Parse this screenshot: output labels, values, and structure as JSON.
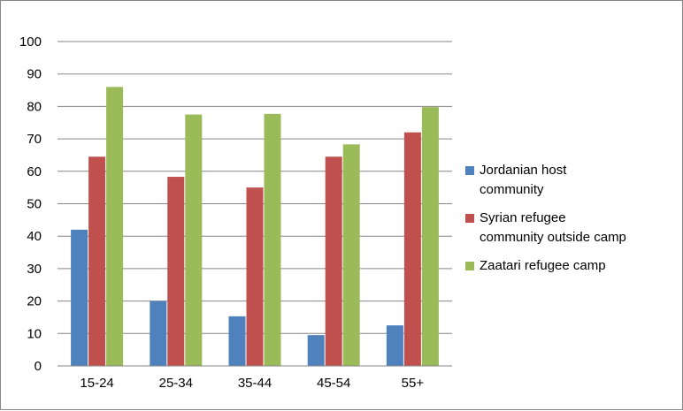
{
  "chart_data": {
    "type": "bar",
    "categories": [
      "15-24",
      "25-34",
      "35-44",
      "45-54",
      "55+"
    ],
    "series": [
      {
        "name": "Jordanian host community",
        "color": "#4f81bd",
        "values": [
          42,
          20,
          15.3,
          9.5,
          12.5
        ]
      },
      {
        "name": "Syrian refugee community outside camp",
        "color": "#c0504d",
        "values": [
          64.5,
          58.3,
          55,
          64.5,
          72
        ]
      },
      {
        "name": "Zaatari refugee camp",
        "color": "#9bbb59",
        "values": [
          86,
          77.5,
          77.7,
          68.3,
          79.8
        ]
      }
    ],
    "ylim": [
      0,
      100
    ],
    "yticks": [
      0,
      10,
      20,
      30,
      40,
      50,
      60,
      70,
      80,
      90,
      100
    ],
    "grid": true,
    "legend_position": "right",
    "title": "",
    "xlabel": "",
    "ylabel": ""
  },
  "legend": {
    "items": [
      {
        "line1": "Jordanian host",
        "line2": "community",
        "color": "#4f81bd"
      },
      {
        "line1": "Syrian refugee",
        "line2": "community outside camp",
        "color": "#c0504d"
      },
      {
        "line1": "Zaatari refugee camp",
        "line2": "",
        "color": "#9bbb59"
      }
    ]
  }
}
